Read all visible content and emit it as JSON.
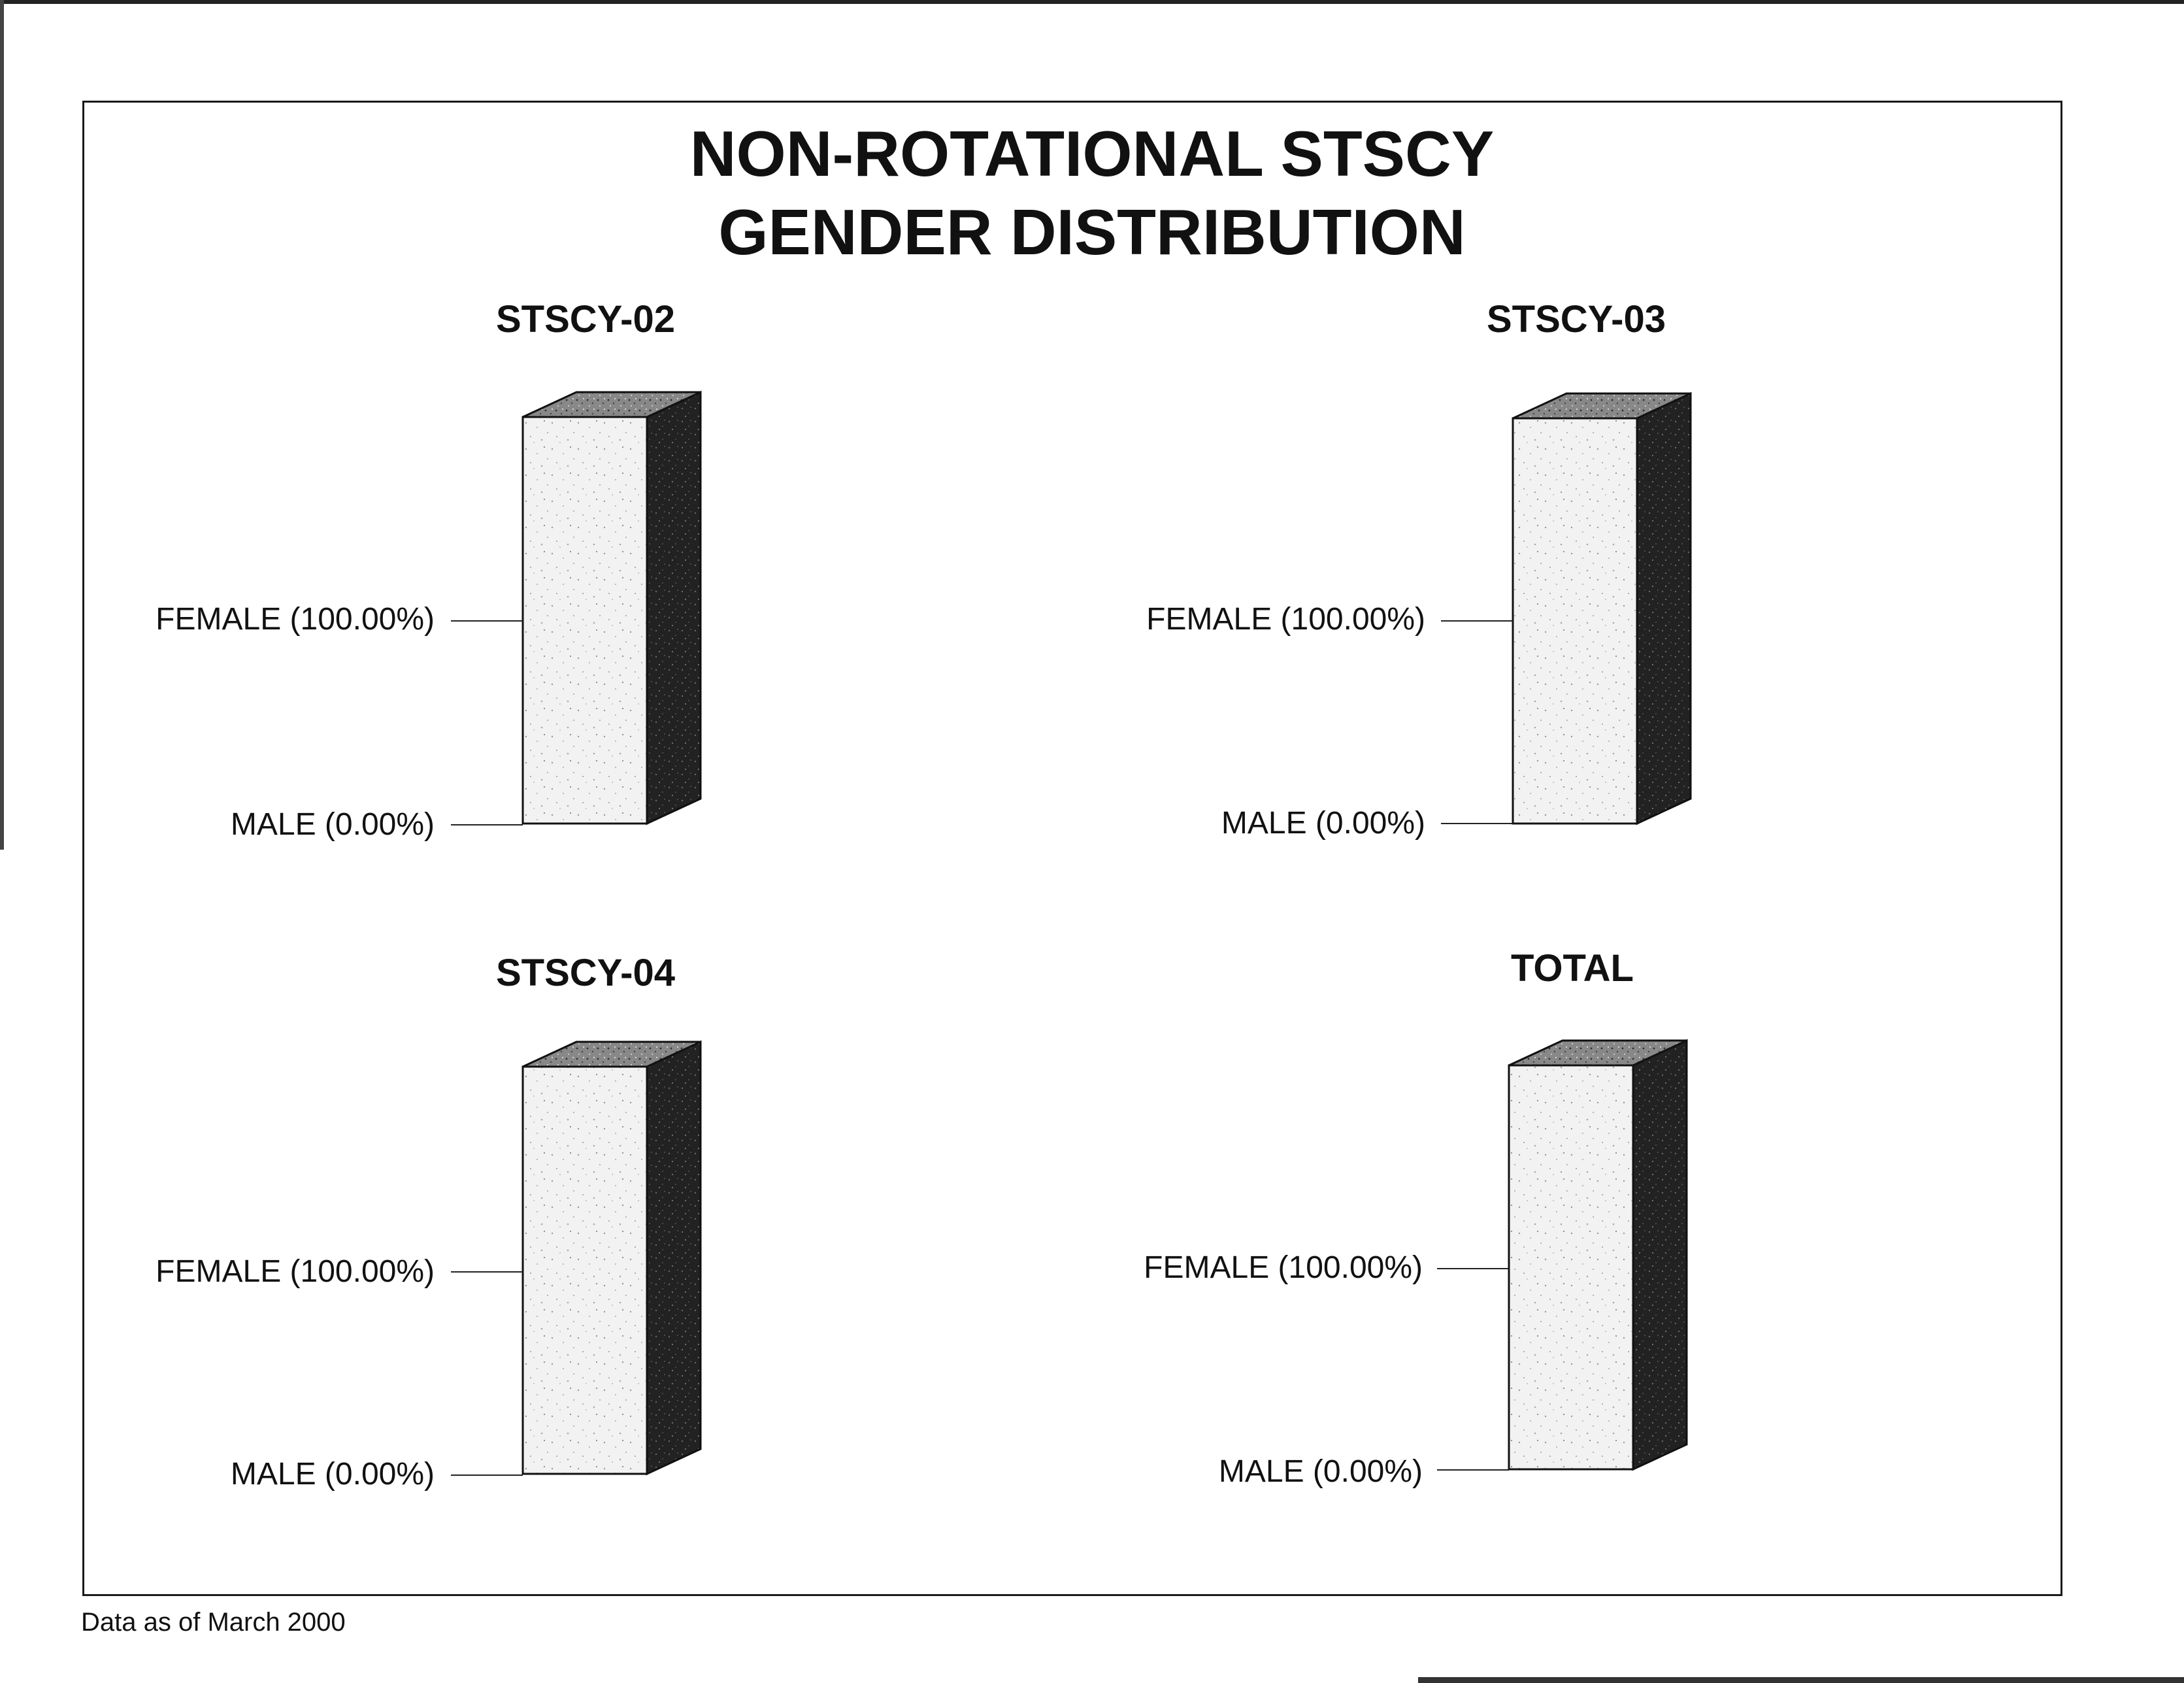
{
  "title_line1": "NON-ROTATIONAL STSCY",
  "title_line2": "GENDER DISTRIBUTION",
  "footer": "Data as of March 2000",
  "chart_data": [
    {
      "type": "bar",
      "title": "STSCY-02",
      "stacked": true,
      "series": [
        {
          "name": "FEMALE",
          "label": "FEMALE (100.00%)",
          "value": 100.0
        },
        {
          "name": "MALE",
          "label": "MALE (0.00%)",
          "value": 0.0
        }
      ]
    },
    {
      "type": "bar",
      "title": "STSCY-03",
      "stacked": true,
      "series": [
        {
          "name": "FEMALE",
          "label": "FEMALE (100.00%)",
          "value": 100.0
        },
        {
          "name": "MALE",
          "label": "MALE (0.00%)",
          "value": 0.0
        }
      ]
    },
    {
      "type": "bar",
      "title": "STSCY-04",
      "stacked": true,
      "series": [
        {
          "name": "FEMALE",
          "label": "FEMALE (100.00%)",
          "value": 100.0
        },
        {
          "name": "MALE",
          "label": "MALE (0.00%)",
          "value": 0.0
        }
      ]
    },
    {
      "type": "bar",
      "title": "TOTAL",
      "stacked": true,
      "series": [
        {
          "name": "FEMALE",
          "label": "FEMALE (100.00%)",
          "value": 100.0
        },
        {
          "name": "MALE",
          "label": "MALE (0.00%)",
          "value": 0.0
        }
      ]
    }
  ]
}
